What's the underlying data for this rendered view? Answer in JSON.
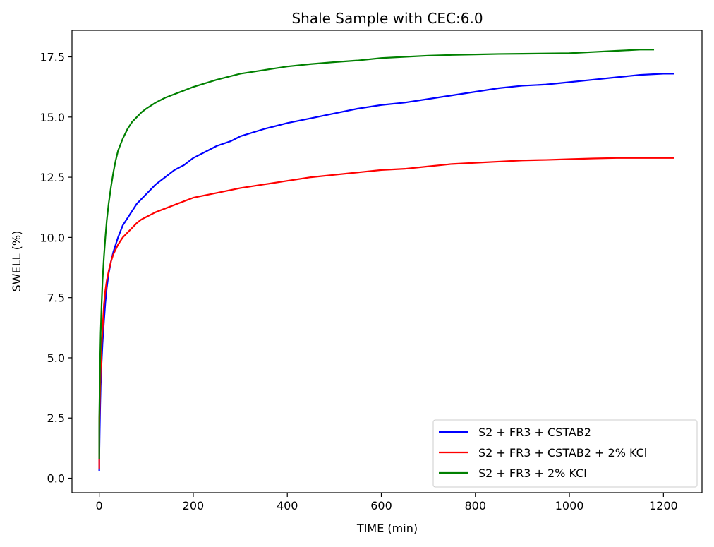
{
  "chart_data": {
    "type": "line",
    "title": "Shale Sample with CEC:6.0",
    "xlabel": "TIME (min)",
    "ylabel": "SWELL (%)",
    "xlim": [
      -58,
      1282
    ],
    "ylim": [
      -0.6,
      18.6
    ],
    "xticks": [
      0,
      200,
      400,
      600,
      800,
      1000,
      1200
    ],
    "xtick_labels": [
      "0",
      "200",
      "400",
      "600",
      "800",
      "1000",
      "1200"
    ],
    "yticks": [
      0.0,
      2.5,
      5.0,
      7.5,
      10.0,
      12.5,
      15.0,
      17.5
    ],
    "ytick_labels": [
      "0.0",
      "2.5",
      "5.0",
      "7.5",
      "10.0",
      "12.5",
      "15.0",
      "17.5"
    ],
    "grid": false,
    "legend_position": "lower-right",
    "series": [
      {
        "name": "S2 + FR3 + CSTAB2",
        "color": "#0000ff",
        "x": [
          0,
          0,
          1,
          2,
          3,
          5,
          7,
          10,
          13,
          16,
          20,
          25,
          30,
          35,
          40,
          50,
          60,
          70,
          80,
          90,
          100,
          120,
          140,
          160,
          180,
          200,
          220,
          250,
          280,
          300,
          350,
          400,
          450,
          500,
          550,
          600,
          650,
          700,
          750,
          800,
          850,
          900,
          950,
          1000,
          1050,
          1100,
          1150,
          1200,
          1222
        ],
        "y": [
          0.3,
          0.7,
          2.0,
          3.0,
          3.8,
          4.8,
          5.6,
          6.5,
          7.3,
          7.9,
          8.5,
          9.0,
          9.4,
          9.7,
          10.0,
          10.5,
          10.8,
          11.1,
          11.4,
          11.6,
          11.8,
          12.2,
          12.5,
          12.8,
          13.0,
          13.3,
          13.5,
          13.8,
          14.0,
          14.2,
          14.5,
          14.75,
          14.95,
          15.15,
          15.35,
          15.5,
          15.6,
          15.75,
          15.9,
          16.05,
          16.2,
          16.3,
          16.35,
          16.45,
          16.55,
          16.65,
          16.75,
          16.8,
          16.8
        ]
      },
      {
        "name": "S2 + FR3 + CSTAB2 + 2% KCl",
        "color": "#ff0000",
        "x": [
          0,
          0,
          1,
          3,
          5,
          8,
          10,
          13,
          16,
          20,
          25,
          30,
          40,
          50,
          60,
          70,
          80,
          90,
          100,
          120,
          140,
          160,
          180,
          200,
          250,
          300,
          350,
          400,
          450,
          500,
          550,
          600,
          650,
          700,
          750,
          800,
          850,
          900,
          950,
          1000,
          1050,
          1100,
          1150,
          1200,
          1222
        ],
        "y": [
          0.4,
          2.0,
          3.0,
          4.5,
          5.5,
          6.5,
          7.2,
          7.8,
          8.2,
          8.6,
          9.0,
          9.3,
          9.7,
          10.0,
          10.2,
          10.4,
          10.6,
          10.75,
          10.85,
          11.05,
          11.2,
          11.35,
          11.5,
          11.65,
          11.85,
          12.05,
          12.2,
          12.35,
          12.5,
          12.6,
          12.7,
          12.8,
          12.85,
          12.95,
          13.05,
          13.1,
          13.15,
          13.2,
          13.22,
          13.25,
          13.28,
          13.3,
          13.3,
          13.3,
          13.3
        ]
      },
      {
        "name": "S2 + FR3 + 2% KCl",
        "color": "#008000",
        "x": [
          0,
          0,
          1,
          2,
          3,
          5,
          7,
          10,
          13,
          16,
          20,
          25,
          30,
          35,
          40,
          50,
          60,
          70,
          80,
          90,
          100,
          120,
          140,
          160,
          180,
          200,
          250,
          300,
          350,
          400,
          450,
          500,
          550,
          600,
          650,
          700,
          750,
          800,
          850,
          900,
          950,
          1000,
          1050,
          1100,
          1150,
          1180
        ],
        "y": [
          0.8,
          2.5,
          3.8,
          5.0,
          6.0,
          7.2,
          8.2,
          9.2,
          10.0,
          10.7,
          11.4,
          12.1,
          12.7,
          13.2,
          13.6,
          14.1,
          14.5,
          14.8,
          15.0,
          15.2,
          15.35,
          15.6,
          15.8,
          15.95,
          16.1,
          16.25,
          16.55,
          16.8,
          16.95,
          17.1,
          17.2,
          17.28,
          17.35,
          17.45,
          17.5,
          17.55,
          17.58,
          17.6,
          17.62,
          17.63,
          17.64,
          17.65,
          17.7,
          17.75,
          17.8,
          17.8
        ]
      }
    ]
  }
}
